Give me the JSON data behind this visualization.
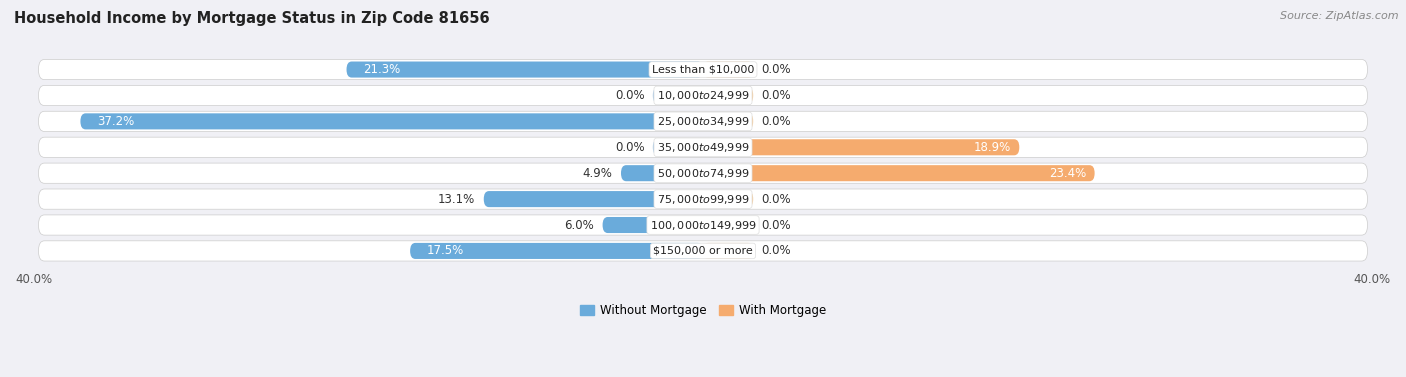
{
  "title": "Household Income by Mortgage Status in Zip Code 81656",
  "source": "Source: ZipAtlas.com",
  "categories": [
    "Less than $10,000",
    "$10,000 to $24,999",
    "$25,000 to $34,999",
    "$35,000 to $49,999",
    "$50,000 to $74,999",
    "$75,000 to $99,999",
    "$100,000 to $149,999",
    "$150,000 or more"
  ],
  "without_mortgage": [
    21.3,
    0.0,
    37.2,
    0.0,
    4.9,
    13.1,
    6.0,
    17.5
  ],
  "with_mortgage": [
    0.0,
    0.0,
    0.0,
    18.9,
    23.4,
    0.0,
    0.0,
    0.0
  ],
  "color_without": "#6aabdb",
  "color_with": "#f5ab6e",
  "color_without_light": "#aecde8",
  "color_with_light": "#f5cfa0",
  "axis_limit": 40.0,
  "row_bg_color": "#e8e8ec",
  "label_fontsize": 8.5,
  "title_fontsize": 10.5,
  "source_fontsize": 8,
  "legend_fontsize": 8.5,
  "value_fontsize": 8.5,
  "cat_fontsize": 8.0,
  "stub_size": 3.0
}
